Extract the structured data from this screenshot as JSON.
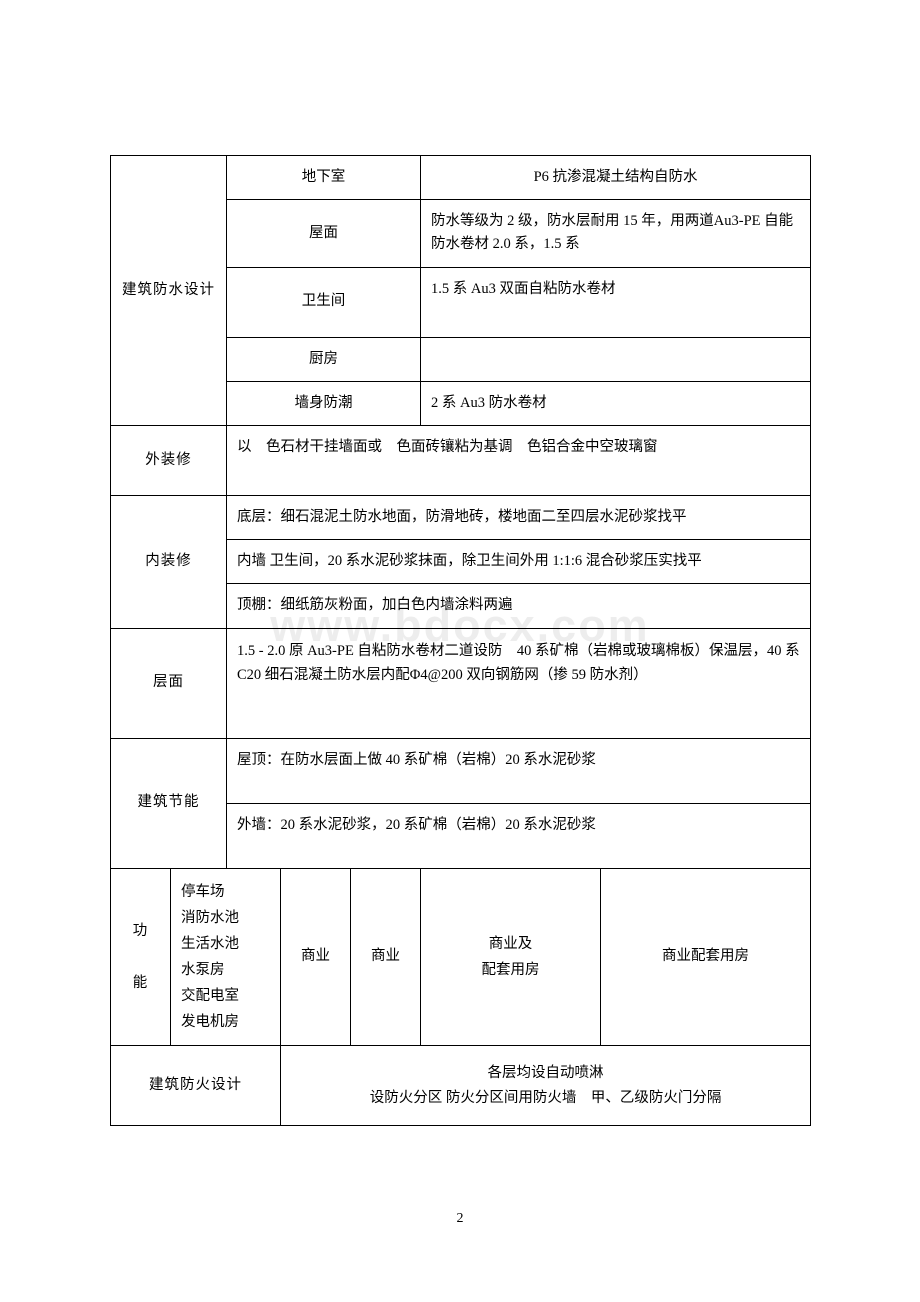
{
  "waterproof": {
    "label": "建筑防水设计",
    "rows": [
      {
        "name": "地下室",
        "desc": "P6 抗渗混凝土结构自防水"
      },
      {
        "name": "屋面",
        "desc": "防水等级为 2 级，防水层耐用 15 年，用两道Au3-PE 自能防水卷材 2.0 系，1.5 系"
      },
      {
        "name": "卫生间",
        "desc": "1.5 系 Au3 双面自粘防水卷材"
      },
      {
        "name": "厨房",
        "desc": ""
      },
      {
        "name": "墙身防潮",
        "desc": "2 系 Au3 防水卷材"
      }
    ]
  },
  "exterior": {
    "label": "外装修",
    "desc": "以　色石材干挂墙面或　色面砖镶粘为基调　色铝合金中空玻璃窗"
  },
  "interior": {
    "label": "内装修",
    "floor": "底层：细石混泥土防水地面，防滑地砖，楼地面二至四层水泥砂浆找平",
    "wall": "内墙 卫生间，20 系水泥砂浆抹面，除卫生间外用 1:1:6 混合砂浆压实找平",
    "ceiling": "顶棚：细纸筋灰粉面，加白色内墙涂料两遍"
  },
  "roof": {
    "label": "层面",
    "desc": "1.5 - 2.0 原 Au3-PE 自粘防水卷材二道设防　40 系矿棉（岩棉或玻璃棉板）保温层，40 系 C20 细石混凝土防水层内配Φ4@200 双向钢筋网（掺 59 防水剂）"
  },
  "energy": {
    "label": "建筑节能",
    "roof": "屋顶：在防水层面上做 40 系矿棉（岩棉）20 系水泥砂浆",
    "wall": "外墙：20 系水泥砂浆，20 系矿棉（岩棉）20 系水泥砂浆"
  },
  "function": {
    "label1": "功",
    "label2": "能",
    "col1_lines": [
      "停车场",
      "消防水池",
      "生活水池",
      "水泵房",
      "交配电室",
      "发电机房"
    ],
    "col2": "商业",
    "col3": "商业",
    "col4_lines": [
      "商业及",
      "配套用房"
    ],
    "col5": "商业配套用房"
  },
  "fire": {
    "label": "建筑防火设计",
    "line1": "各层均设自动喷淋",
    "line2": "设防火分区 防火分区间用防火墙　甲、乙级防火门分隔"
  },
  "watermark": "www.bdocx.com",
  "pageNumber": "2"
}
